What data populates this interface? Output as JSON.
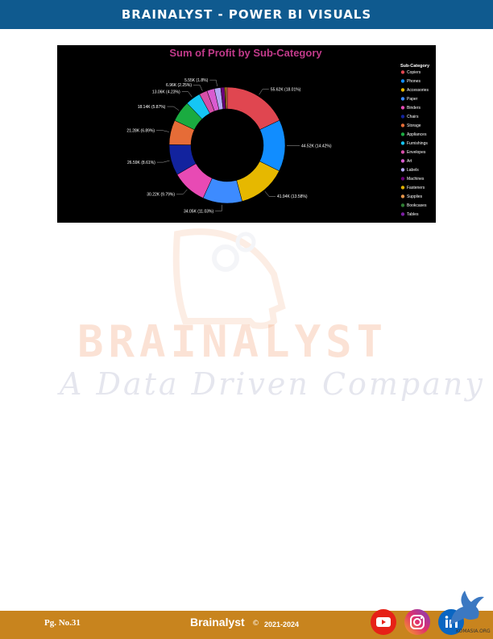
{
  "header": {
    "title": "BRAINALYST - POWER BI VISUALS"
  },
  "watermark": {
    "brand": "BRAINALYST",
    "tagline": "A Data Driven Company"
  },
  "chart_data": {
    "type": "pie",
    "donut": true,
    "title": "Sum of Profit by Sub-Category",
    "title_color": "#c13a8a",
    "background": "#000000",
    "legend_title": "Sub-Category",
    "legend_position": "right",
    "slices": [
      {
        "name": "Copiers",
        "value": 55.62,
        "label": "55.62K (18.01%)",
        "color": "#e04650"
      },
      {
        "name": "Phones",
        "value": 44.52,
        "label": "44.52K (14.42%)",
        "color": "#118dff"
      },
      {
        "name": "Accessories",
        "value": 41.94,
        "label": "41.94K (13.58%)",
        "color": "#e6b800"
      },
      {
        "name": "Paper",
        "value": 34.05,
        "label": "34.05K (11.03%)",
        "color": "#3d8bff"
      },
      {
        "name": "Binders",
        "value": 30.22,
        "label": "30.22K (9.79%)",
        "color": "#e84ab4"
      },
      {
        "name": "Chairs",
        "value": 26.59,
        "label": "26.59K (8.61%)",
        "color": "#12239e"
      },
      {
        "name": "Storage",
        "value": 21.28,
        "label": "21.28K (6.89%)",
        "color": "#e66c37"
      },
      {
        "name": "Appliances",
        "value": 18.14,
        "label": "18.14K (5.87%)",
        "color": "#1aab40"
      },
      {
        "name": "Furnishings",
        "value": 13.06,
        "label": "13.06K (4.23%)",
        "color": "#15c6f4"
      },
      {
        "name": "Envelopes",
        "value": 6.96,
        "label": "6.96K (2.25%)",
        "color": "#d64fa8"
      },
      {
        "name": "Art",
        "value": 6.53,
        "label": "",
        "color": "#d95bd0"
      },
      {
        "name": "Labels",
        "value": 5.55,
        "label": "5.55K (1.8%)",
        "color": "#b4a7f5"
      },
      {
        "name": "Machines",
        "value": 3.38,
        "label": "",
        "color": "#6b007b"
      },
      {
        "name": "Fasteners",
        "value": 0.95,
        "label": "",
        "color": "#e0b000"
      },
      {
        "name": "Supplies",
        "value": 1.19,
        "label": "",
        "color": "#e8964a"
      },
      {
        "name": "Bookcases",
        "value": 0.0,
        "label": "",
        "color": "#2e7d32"
      },
      {
        "name": "Tables",
        "value": 0.0,
        "label": "",
        "color": "#7b1fa2"
      }
    ]
  },
  "footer": {
    "page": "Pg. No.31",
    "brand": "Brainalyst",
    "copyright": "©",
    "years": "2021-2024",
    "bird_text": "KOMASIA.ORG"
  },
  "icons": {
    "youtube": "youtube-icon",
    "instagram": "instagram-icon",
    "linkedin": "linkedin-icon"
  }
}
